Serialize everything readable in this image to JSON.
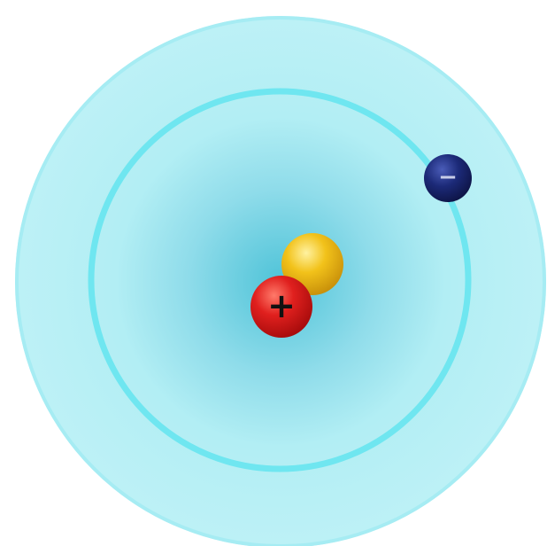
{
  "diagram": {
    "proton": {
      "charge_symbol": "+",
      "color": "#e0201e",
      "highlight_color": "#ff7a6a",
      "symbol_color": "#111111"
    },
    "neutron": {
      "color": "#f2c21a",
      "highlight_color": "#fff2a0"
    },
    "electron": {
      "charge_symbol": "−",
      "color": "#1c2a78",
      "highlight_color": "#4a5cb8",
      "symbol_color": "#c8cde8"
    },
    "cloud": {
      "center_color": "#4fc3d8",
      "outer_color": "#bdf1f6",
      "ring_color": "#6fe6f0"
    }
  }
}
